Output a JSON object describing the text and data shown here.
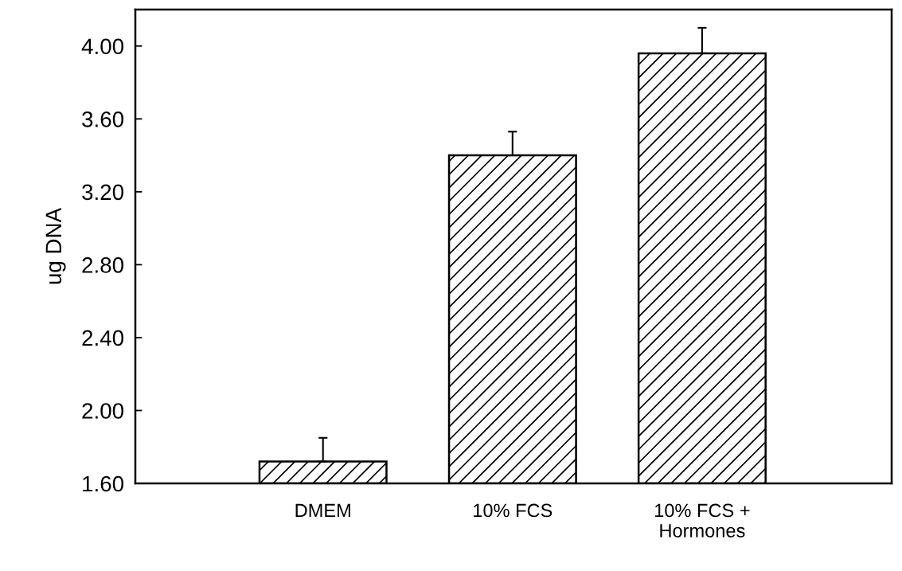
{
  "chart_data": {
    "type": "bar",
    "ylabel": "ug DNA",
    "categories": [
      "DMEM",
      "10% FCS",
      "10% FCS +\nHormones"
    ],
    "values": [
      1.72,
      3.4,
      3.96
    ],
    "errors": [
      [
        1.72,
        1.85
      ],
      [
        3.4,
        3.53
      ],
      [
        3.96,
        4.1
      ]
    ],
    "color": "#000000",
    "ylim": [
      1.6,
      4.2
    ],
    "yticks": [
      {
        "value": 1.6,
        "label": "1.60"
      },
      {
        "value": 2.0,
        "label": "2.00"
      },
      {
        "value": 2.4,
        "label": "2.40"
      },
      {
        "value": 2.8,
        "label": "2.80"
      },
      {
        "value": 3.2,
        "label": "3.20"
      },
      {
        "value": 3.6,
        "label": "3.60"
      },
      {
        "value": 4.0,
        "label": "4.00"
      }
    ],
    "grid": false
  }
}
